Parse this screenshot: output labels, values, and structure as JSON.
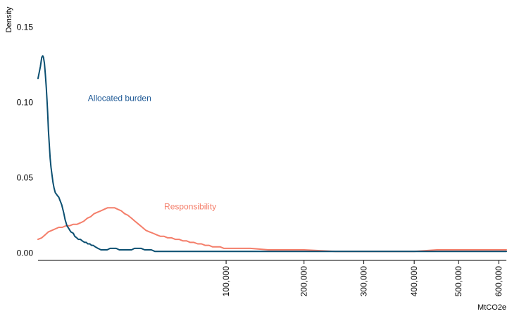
{
  "chart_data": {
    "type": "line",
    "title": "",
    "xlabel": "MtCO2e",
    "ylabel": "Density",
    "x_scale": "sqrt",
    "xlim": [
      0,
      620000
    ],
    "ylim": [
      -0.005,
      0.155
    ],
    "y_ticks": [
      0.0,
      0.05,
      0.1,
      0.15
    ],
    "y_tick_labels": [
      "0.00",
      "0.05",
      "0.10",
      "0.15"
    ],
    "x_ticks": [
      100000,
      200000,
      300000,
      400000,
      500000,
      600000
    ],
    "x_tick_labels": [
      "100,000",
      "200,000",
      "300,000",
      "400,000",
      "500,000",
      "600,000"
    ],
    "grid": false,
    "legend": "none (direct labels)",
    "series": [
      {
        "name": "Allocated burden",
        "color": "#0b4f71",
        "label_color": "#1f5a96",
        "x": [
          0,
          16,
          39,
          63,
          84,
          117,
          155,
          191,
          227,
          263,
          307,
          357,
          413,
          475,
          547,
          628,
          730,
          842,
          962,
          1067,
          1220,
          1355,
          1587,
          1846,
          2074,
          2369,
          2706,
          3026,
          3520,
          3824,
          4238,
          4590,
          5104,
          5520,
          6121,
          6550,
          7013,
          7569,
          8107,
          8574,
          9296,
          10137,
          11197,
          12324,
          13498,
          14715,
          15904,
          17258,
          18686,
          20120,
          21574,
          23132,
          24742,
          26298,
          28100,
          30090,
          32126,
          34102,
          36297,
          38558,
          40772,
          43121,
          45502,
          47880,
          50396,
          52969,
          55592,
          58124,
          60899,
          66577,
          80420,
          100000,
          150000,
          200000,
          300000,
          400000,
          500000,
          620000
        ],
        "values": [
          0.116,
          0.124,
          0.13,
          0.131,
          0.13,
          0.126,
          0.118,
          0.11,
          0.102,
          0.093,
          0.081,
          0.072,
          0.063,
          0.057,
          0.052,
          0.047,
          0.043,
          0.04,
          0.039,
          0.038,
          0.037,
          0.035,
          0.032,
          0.027,
          0.022,
          0.018,
          0.016,
          0.014,
          0.013,
          0.011,
          0.01,
          0.009,
          0.009,
          0.008,
          0.007,
          0.007,
          0.006,
          0.006,
          0.005,
          0.005,
          0.004,
          0.003,
          0.002,
          0.002,
          0.002,
          0.003,
          0.003,
          0.003,
          0.002,
          0.002,
          0.002,
          0.002,
          0.002,
          0.003,
          0.003,
          0.003,
          0.002,
          0.002,
          0.002,
          0.001,
          0.001,
          0.001,
          0.001,
          0.001,
          0.001,
          0.001,
          0.001,
          0.001,
          0.001,
          0.001,
          0.001,
          0.001,
          0.001,
          0.001,
          0.001,
          0.001,
          0.001,
          0.001
        ]
      },
      {
        "name": "Responsibility",
        "color": "#f47e6a",
        "label_color": "#f47e6a",
        "x": [
          0,
          39,
          139,
          307,
          547,
          858,
          1230,
          1669,
          2200,
          2800,
          3520,
          4306,
          5104,
          5900,
          6843,
          7800,
          8861,
          9996,
          11197,
          12413,
          13708,
          15129,
          16531,
          17939,
          19542,
          21229,
          22824,
          24742,
          26567,
          28630,
          30759,
          32872,
          35056,
          37482,
          39796,
          42370,
          44940,
          47504,
          50396,
          53232,
          56247,
          59245,
          62280,
          65502,
          68680,
          72085,
          75451,
          78859,
          82482,
          86247,
          89955,
          93896,
          97700,
          101780,
          106050,
          110170,
          118730,
          127650,
          150000,
          200000,
          250000,
          300000,
          350000,
          400000,
          450000,
          500000,
          550000,
          620000
        ],
        "values": [
          0.009,
          0.01,
          0.012,
          0.014,
          0.015,
          0.016,
          0.017,
          0.017,
          0.018,
          0.018,
          0.019,
          0.019,
          0.02,
          0.021,
          0.023,
          0.024,
          0.026,
          0.027,
          0.028,
          0.029,
          0.03,
          0.03,
          0.03,
          0.029,
          0.028,
          0.026,
          0.025,
          0.023,
          0.021,
          0.019,
          0.017,
          0.015,
          0.014,
          0.013,
          0.012,
          0.011,
          0.011,
          0.01,
          0.01,
          0.009,
          0.009,
          0.008,
          0.008,
          0.007,
          0.007,
          0.006,
          0.006,
          0.005,
          0.005,
          0.004,
          0.004,
          0.004,
          0.003,
          0.003,
          0.003,
          0.003,
          0.003,
          0.003,
          0.002,
          0.002,
          0.001,
          0.001,
          0.001,
          0.001,
          0.002,
          0.002,
          0.002,
          0.002
        ]
      }
    ],
    "annotations": [
      {
        "text": "Allocated burden",
        "x": 7013,
        "y": 0.101,
        "color": "#1f5a96"
      },
      {
        "text": "Responsibility",
        "x": 44940,
        "y": 0.029,
        "color": "#f47e6a"
      }
    ]
  }
}
